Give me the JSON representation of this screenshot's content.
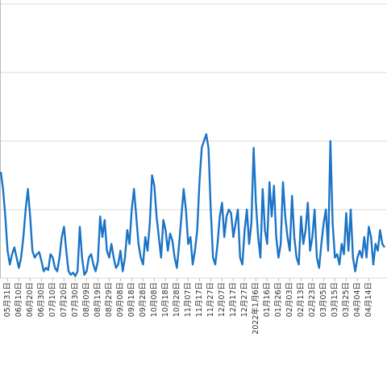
{
  "chart_data": {
    "type": "line",
    "color": "#1b74c5",
    "grid": true,
    "ylim": [
      0,
      4
    ],
    "categories": [
      null,
      null,
      null,
      "05月31日",
      null,
      null,
      null,
      null,
      "06月10日",
      null,
      null,
      null,
      null,
      "06月20日",
      null,
      null,
      null,
      null,
      "06月30日",
      null,
      null,
      null,
      null,
      "07月10日",
      null,
      null,
      null,
      null,
      "07月20日",
      null,
      null,
      null,
      null,
      "07月30日",
      null,
      null,
      null,
      null,
      "08月09日",
      null,
      null,
      null,
      null,
      "08月19日",
      null,
      null,
      null,
      null,
      "08月29日",
      null,
      null,
      null,
      null,
      "09月08日",
      null,
      null,
      null,
      null,
      "09月18日",
      null,
      null,
      null,
      null,
      "09月28日",
      null,
      null,
      null,
      null,
      "10月08日",
      null,
      null,
      null,
      null,
      "10月18日",
      null,
      null,
      null,
      null,
      "10月28日",
      null,
      null,
      null,
      null,
      "11月07日",
      null,
      null,
      null,
      null,
      "11月17日",
      null,
      null,
      null,
      null,
      "11月27日",
      null,
      null,
      null,
      null,
      "12月07日",
      null,
      null,
      null,
      null,
      "12月17日",
      null,
      null,
      null,
      null,
      "12月27日",
      null,
      null,
      null,
      null,
      "2022年1月6日",
      null,
      null,
      null,
      null,
      "01月16日",
      null,
      null,
      null,
      null,
      "01月26日",
      null,
      null,
      null,
      null,
      "02月03日",
      null,
      null,
      null,
      null,
      "02月13日",
      null,
      null,
      null,
      null,
      "02月23日",
      null,
      null,
      null,
      null,
      "03月05日",
      null,
      null,
      null,
      null,
      "03月15日",
      null,
      null,
      null,
      null,
      "03月25日",
      null,
      null,
      null,
      null,
      "04月04日",
      null,
      null,
      null,
      null,
      "04月14日",
      null,
      null,
      null,
      null,
      null,
      null,
      null
    ],
    "values": [
      1.55,
      1.3,
      0.9,
      0.4,
      0.2,
      0.35,
      0.45,
      0.3,
      0.15,
      0.3,
      0.6,
      1.0,
      1.3,
      0.9,
      0.4,
      0.3,
      0.35,
      0.38,
      0.25,
      0.1,
      0.15,
      0.12,
      0.35,
      0.3,
      0.15,
      0.1,
      0.3,
      0.6,
      0.75,
      0.4,
      0.1,
      0.05,
      0.08,
      0.03,
      0.1,
      0.75,
      0.3,
      0.05,
      0.1,
      0.3,
      0.35,
      0.2,
      0.1,
      0.25,
      0.9,
      0.6,
      0.85,
      0.4,
      0.3,
      0.5,
      0.3,
      0.15,
      0.2,
      0.4,
      0.1,
      0.3,
      0.7,
      0.5,
      1.0,
      1.3,
      0.9,
      0.5,
      0.3,
      0.2,
      0.6,
      0.4,
      0.8,
      1.5,
      1.35,
      0.9,
      0.6,
      0.3,
      0.85,
      0.7,
      0.4,
      0.65,
      0.55,
      0.3,
      0.15,
      0.5,
      0.9,
      1.3,
      1.0,
      0.5,
      0.6,
      0.2,
      0.4,
      0.7,
      1.4,
      1.9,
      2.0,
      2.1,
      1.9,
      1.0,
      0.3,
      0.2,
      0.5,
      0.9,
      1.1,
      0.6,
      0.9,
      1.0,
      0.95,
      0.6,
      0.8,
      1.0,
      0.3,
      0.2,
      0.7,
      1.0,
      0.5,
      0.8,
      1.9,
      1.1,
      0.6,
      0.3,
      1.3,
      0.7,
      0.5,
      1.4,
      0.9,
      1.35,
      0.6,
      0.3,
      0.5,
      1.4,
      0.9,
      0.6,
      0.4,
      1.2,
      0.6,
      0.3,
      0.2,
      0.9,
      0.5,
      0.7,
      1.1,
      0.4,
      0.6,
      1.0,
      0.3,
      0.15,
      0.5,
      0.8,
      1.0,
      0.4,
      2.0,
      0.8,
      0.3,
      0.35,
      0.2,
      0.5,
      0.35,
      0.95,
      0.4,
      1.0,
      0.3,
      0.1,
      0.3,
      0.4,
      0.3,
      0.6,
      0.3,
      0.75,
      0.6,
      0.2,
      0.5,
      0.4,
      0.7,
      0.5,
      0.45
    ]
  }
}
